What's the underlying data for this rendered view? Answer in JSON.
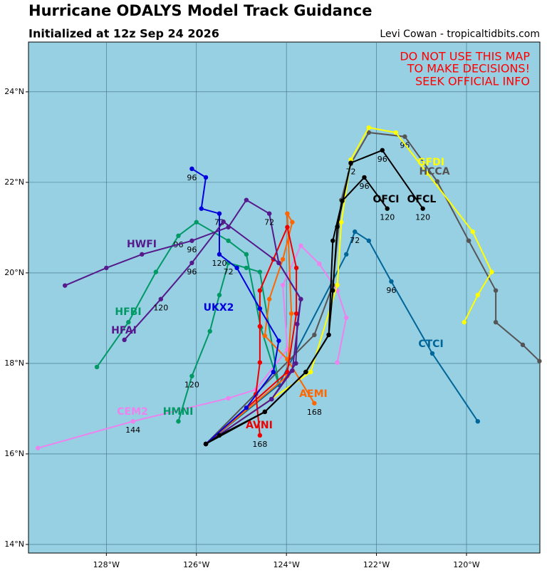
{
  "header": {
    "title": "Hurricane ODALYS Model Track Guidance",
    "subtitle": "Initialized at 12z Sep 24 2026",
    "credit": "Levi Cowan - tropicaltidbits.com"
  },
  "warning": [
    "DO NOT USE THIS MAP",
    "TO MAKE DECISIONS!",
    "SEEK OFFICIAL INFO"
  ],
  "chart_data": {
    "type": "track",
    "background": "#97cfe3",
    "grid": true,
    "xlim": [
      -129.73,
      -118.37
    ],
    "ylim": [
      13.81,
      25.1
    ],
    "xticks": [
      {
        "value": -128,
        "label": "128°W"
      },
      {
        "value": -126,
        "label": "126°W"
      },
      {
        "value": -124,
        "label": "124°W"
      },
      {
        "value": -122,
        "label": "122°W"
      },
      {
        "value": -120,
        "label": "120°W"
      }
    ],
    "yticks": [
      {
        "value": 14,
        "label": "14°N"
      },
      {
        "value": 16,
        "label": "16°N"
      },
      {
        "value": 18,
        "label": "18°N"
      },
      {
        "value": 20,
        "label": "20°N"
      },
      {
        "value": 22,
        "label": "22°N"
      },
      {
        "value": 24,
        "label": "24°N"
      }
    ],
    "series": [
      {
        "name": "CEM2",
        "color": "#ee82ee",
        "x": [
          -129.52,
          -127.41,
          -125.29,
          -124.68,
          -123.98,
          -124.08,
          -123.68,
          -123.27,
          -122.87,
          -122.67,
          -122.87
        ],
        "values": [
          16.13,
          16.72,
          17.23,
          17.42,
          18.31,
          19.73,
          20.6,
          20.2,
          19.61,
          19.01,
          18.02
        ],
        "hours": [
          null,
          144,
          null,
          null,
          null,
          null,
          null,
          null,
          null,
          null,
          null
        ]
      },
      {
        "name": "HFBI",
        "color": "#009966",
        "x": [
          -125.79,
          -124.17,
          -124.57,
          -124.89,
          -125.29,
          -126.0,
          -126.4,
          -126.9,
          -127.51,
          -128.21
        ],
        "values": [
          16.22,
          17.53,
          18.79,
          20.41,
          20.71,
          21.12,
          20.82,
          20.02,
          18.91,
          17.92
        ],
        "hours": [
          null,
          null,
          null,
          null,
          null,
          null,
          96,
          null,
          null,
          null
        ]
      },
      {
        "name": "HMNI",
        "color": "#009966",
        "x": [
          -125.79,
          -124.17,
          -124.59,
          -124.89,
          -125.29,
          -125.49,
          -125.7,
          -126.1,
          -126.4
        ],
        "values": [
          16.22,
          17.53,
          20.02,
          20.11,
          20.22,
          19.51,
          18.71,
          17.72,
          16.72
        ],
        "hours": [
          null,
          null,
          null,
          null,
          72,
          null,
          null,
          120,
          null
        ]
      },
      {
        "name": "CTCI",
        "color": "#006699",
        "x": [
          -125.79,
          -124.17,
          -122.67,
          -122.48,
          -122.17,
          -121.67,
          -120.76,
          -119.75
        ],
        "values": [
          16.22,
          17.53,
          20.41,
          20.91,
          20.71,
          19.81,
          18.22,
          16.72
        ],
        "hours": [
          null,
          null,
          null,
          72,
          null,
          96,
          null,
          null
        ]
      },
      {
        "name": "HCCA",
        "color": "#555555",
        "x": [
          -125.79,
          -123.38,
          -122.97,
          -122.78,
          -122.57,
          -122.17,
          -121.37,
          -120.65,
          -119.95,
          -119.35,
          -119.35,
          -118.75,
          -118.38
        ],
        "values": [
          16.22,
          18.63,
          19.73,
          21.61,
          22.41,
          23.1,
          23.01,
          22.02,
          20.71,
          19.61,
          18.91,
          18.41,
          18.05
        ],
        "hours": [
          null,
          null,
          null,
          null,
          null,
          null,
          96,
          null,
          null,
          null,
          null,
          null,
          null
        ]
      },
      {
        "name": "GFDI",
        "color": "#ffff00",
        "x": [
          -125.79,
          -123.46,
          -122.87,
          -122.78,
          -122.57,
          -122.17,
          -121.57,
          -120.87,
          -119.86,
          -119.44,
          -119.75,
          -120.05
        ],
        "values": [
          16.22,
          17.81,
          19.73,
          21.12,
          22.5,
          23.21,
          23.1,
          22.2,
          20.91,
          20.02,
          19.51,
          18.91
        ],
        "hours": [
          null,
          null,
          null,
          null,
          null,
          null,
          null,
          null,
          null,
          null,
          null,
          null
        ]
      },
      {
        "name": "AEMI",
        "color": "#ff6600",
        "x": [
          -125.79,
          -123.98,
          -123.89,
          -123.98,
          -123.87,
          -124.08,
          -124.38,
          -124.48,
          -123.98,
          -123.38
        ],
        "values": [
          16.22,
          17.72,
          19.1,
          21.31,
          21.12,
          20.3,
          19.42,
          18.61,
          18.09,
          17.12
        ],
        "hours": [
          null,
          null,
          null,
          null,
          null,
          null,
          null,
          null,
          null,
          168
        ]
      },
      {
        "name": "AVNI",
        "color": "#ee0000",
        "x": [
          -125.79,
          -123.98,
          -123.78,
          -123.78,
          -123.98,
          -124.29,
          -124.59,
          -124.59,
          -124.59,
          -124.68,
          -124.59
        ],
        "values": [
          16.22,
          17.81,
          19.1,
          20.11,
          21.01,
          20.3,
          19.61,
          18.82,
          18.02,
          17.32,
          16.41
        ],
        "hours": [
          null,
          null,
          null,
          null,
          null,
          null,
          null,
          null,
          null,
          null,
          168
        ]
      },
      {
        "name": "UKX2",
        "color": "#0000dd",
        "x": [
          -125.79,
          -124.89,
          -124.29,
          -124.17,
          -124.59,
          -125.1,
          -125.49,
          -125.49,
          -125.89,
          -125.79,
          -126.1
        ],
        "values": [
          16.22,
          17.02,
          17.81,
          18.5,
          19.21,
          20.11,
          20.41,
          21.31,
          21.42,
          22.11,
          22.3
        ],
        "hours": [
          null,
          null,
          null,
          null,
          null,
          null,
          120,
          72,
          null,
          null,
          96
        ]
      },
      {
        "name": "HWFI",
        "color": "#551a8b",
        "x": [
          -125.79,
          -124.33,
          -123.87,
          -123.68,
          -124.17,
          -124.38,
          -124.89,
          -125.29,
          -126.1,
          -127.21,
          -128.0,
          -128.92
        ],
        "values": [
          16.22,
          17.21,
          17.84,
          19.42,
          20.22,
          21.31,
          21.61,
          21.01,
          20.71,
          20.41,
          20.11,
          19.72
        ],
        "hours": [
          null,
          null,
          null,
          null,
          null,
          72,
          null,
          null,
          96,
          null,
          null,
          null
        ]
      },
      {
        "name": "HFAI",
        "color": "#551a8b",
        "x": [
          -125.79,
          -124.33,
          -123.79,
          -123.76,
          -123.68,
          -124.17,
          -125.4,
          -126.1,
          -126.79,
          -127.6
        ],
        "values": [
          16.22,
          17.21,
          18.0,
          18.87,
          19.42,
          20.22,
          21.13,
          20.22,
          19.42,
          18.52
        ],
        "hours": [
          null,
          null,
          null,
          null,
          null,
          null,
          null,
          96,
          120,
          null
        ]
      },
      {
        "name": "OFCI",
        "color": "#000000",
        "x": [
          -125.79,
          -124.48,
          -123.57,
          -123.06,
          -122.97,
          -122.76,
          -122.27,
          -121.76
        ],
        "values": [
          16.22,
          16.93,
          17.81,
          18.63,
          20.71,
          21.59,
          22.11,
          21.42
        ],
        "hours": [
          null,
          null,
          null,
          null,
          null,
          null,
          96,
          120
        ]
      },
      {
        "name": "OFCL",
        "color": "#000000",
        "x": [
          -125.79,
          -125.49,
          -124.48,
          -123.57,
          -123.06,
          -122.97,
          -122.87,
          -122.57,
          -121.87,
          -120.97
        ],
        "values": [
          16.22,
          16.41,
          16.93,
          17.81,
          18.63,
          19.61,
          21.02,
          22.43,
          22.71,
          21.42
        ],
        "hours": [
          null,
          null,
          null,
          null,
          null,
          null,
          null,
          72,
          96,
          120
        ]
      }
    ]
  }
}
